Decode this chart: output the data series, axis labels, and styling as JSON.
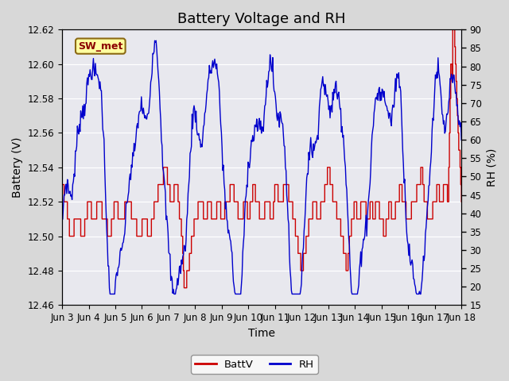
{
  "title": "Battery Voltage and RH",
  "xlabel": "Time",
  "ylabel_left": "Battery (V)",
  "ylabel_right": "RH (%)",
  "legend_label_red": "BattV",
  "legend_label_blue": "RH",
  "annotation": "SW_met",
  "left_ylim": [
    12.46,
    12.62
  ],
  "right_ylim": [
    15,
    90
  ],
  "left_yticks": [
    12.46,
    12.48,
    12.5,
    12.52,
    12.54,
    12.56,
    12.58,
    12.6,
    12.62
  ],
  "right_yticks": [
    15,
    20,
    25,
    30,
    35,
    40,
    45,
    50,
    55,
    60,
    65,
    70,
    75,
    80,
    85,
    90
  ],
  "color_red": "#CC0000",
  "color_blue": "#0000CC",
  "fig_bg_color": "#E0E0E0",
  "plot_bg_color": "#E8E8F0",
  "n_points": 600,
  "xtick_labels": [
    "Jun 3",
    "Jun 4",
    "Jun 5",
    "Jun 6",
    "Jun 7",
    "Jun 8",
    "Jun 9",
    "Jun 10",
    "Jun 11",
    "Jun 12",
    "Jun 13",
    "Jun 14",
    "Jun 15",
    "Jun 16",
    "Jun 17",
    "Jun 18"
  ],
  "title_fontsize": 13,
  "axis_label_fontsize": 10,
  "tick_fontsize": 8.5
}
